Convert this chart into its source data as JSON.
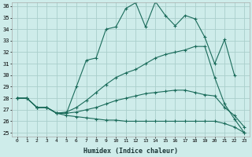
{
  "background_color": "#ceecea",
  "grid_color": "#aacfcc",
  "line_color": "#1a6b5a",
  "xlabel": "Humidex (Indice chaleur)",
  "ylim": [
    25,
    36
  ],
  "yticks": [
    25,
    26,
    27,
    28,
    29,
    30,
    31,
    32,
    33,
    34,
    35,
    36
  ],
  "x_ticks": [
    0,
    1,
    2,
    3,
    4,
    5,
    6,
    7,
    8,
    9,
    10,
    11,
    12,
    13,
    14,
    15,
    16,
    17,
    18,
    19,
    20,
    21,
    22,
    23
  ],
  "line1_x": [
    0,
    1,
    2,
    3,
    4,
    5,
    6,
    7,
    8,
    9,
    10,
    11,
    12,
    13,
    14,
    15,
    16,
    17,
    18,
    19,
    20,
    21,
    22
  ],
  "line1_y": [
    28.0,
    28.0,
    27.2,
    27.2,
    26.7,
    26.7,
    29.0,
    31.3,
    31.5,
    34.0,
    34.2,
    35.8,
    36.3,
    34.2,
    36.4,
    35.2,
    34.3,
    35.2,
    34.9,
    33.3,
    31.0,
    33.1,
    30.0
  ],
  "line2_x": [
    0,
    1,
    2,
    3,
    4,
    5,
    6,
    7,
    8,
    9,
    10,
    11,
    12,
    13,
    14,
    15,
    16,
    17,
    18,
    19,
    20,
    21,
    22,
    23
  ],
  "line2_y": [
    28.0,
    28.0,
    27.2,
    27.2,
    26.7,
    26.8,
    27.2,
    27.8,
    28.5,
    29.2,
    29.8,
    30.2,
    30.5,
    31.0,
    31.5,
    31.8,
    32.0,
    32.2,
    32.5,
    32.5,
    29.8,
    27.5,
    26.2,
    25.0
  ],
  "line3_x": [
    0,
    1,
    2,
    3,
    4,
    5,
    6,
    7,
    8,
    9,
    10,
    11,
    12,
    13,
    14,
    15,
    16,
    17,
    18,
    19,
    20,
    21,
    22,
    23
  ],
  "line3_y": [
    28.0,
    28.0,
    27.2,
    27.2,
    26.7,
    26.7,
    26.8,
    27.0,
    27.2,
    27.5,
    27.8,
    28.0,
    28.2,
    28.4,
    28.5,
    28.6,
    28.7,
    28.7,
    28.5,
    28.3,
    28.2,
    27.2,
    26.5,
    25.5
  ],
  "line4_x": [
    0,
    1,
    2,
    3,
    4,
    5,
    6,
    7,
    8,
    9,
    10,
    11,
    12,
    13,
    14,
    15,
    16,
    17,
    18,
    19,
    20,
    21,
    22,
    23
  ],
  "line4_y": [
    28.0,
    28.0,
    27.2,
    27.2,
    26.7,
    26.5,
    26.4,
    26.3,
    26.2,
    26.1,
    26.1,
    26.0,
    26.0,
    26.0,
    26.0,
    26.0,
    26.0,
    26.0,
    26.0,
    26.0,
    26.0,
    25.8,
    25.5,
    25.0
  ]
}
